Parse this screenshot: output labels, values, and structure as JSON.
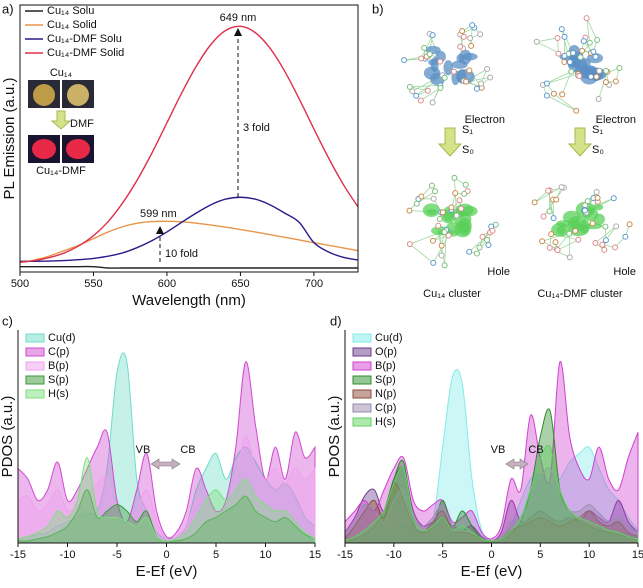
{
  "chart_data": [
    {
      "type": "line",
      "panel_label": "a)",
      "xlabel": "Wavelength (nm)",
      "ylabel": "PL Emission (a.u.)",
      "x": [
        500,
        510,
        520,
        530,
        540,
        550,
        560,
        570,
        580,
        590,
        600,
        610,
        620,
        630,
        640,
        650,
        660,
        670,
        680,
        690,
        700,
        710,
        720,
        730
      ],
      "xlim": [
        500,
        730
      ],
      "xticks": [
        500,
        550,
        600,
        650,
        700
      ],
      "ylim": [
        0,
        100
      ],
      "series": [
        {
          "name": "Cu₁₄ Solu",
          "color": "#222222",
          "values": [
            2,
            2,
            2,
            2,
            2,
            2,
            1.5,
            1.5,
            1.5,
            1.5,
            1.5,
            1.5,
            1.5,
            1.5,
            1.5,
            1.5,
            1.5,
            1.5,
            1.5,
            1.5,
            1.5,
            1.5,
            1.5,
            1.5
          ]
        },
        {
          "name": "Cu₁₄ Solid",
          "color": "#e8954a",
          "values": [
            3.5,
            4.5,
            6,
            8,
            10,
            12.5,
            15,
            17,
            18.3,
            18.9,
            19,
            18.8,
            18.3,
            17.6,
            16.8,
            15.9,
            15,
            14,
            13,
            12,
            11,
            10,
            9,
            8
          ]
        },
        {
          "name": "Cu₁₄-DMF Solu",
          "color": "#2a1a8a",
          "values": [
            4,
            4,
            4.1,
            4.3,
            4.6,
            5.1,
            5.9,
            7.2,
            9.2,
            11.8,
            15,
            18.6,
            22.1,
            25.2,
            27.3,
            28,
            27.3,
            25.2,
            22.1,
            18.6,
            11,
            7.5,
            5.5,
            4.5
          ]
        },
        {
          "name": "Cu₁₄-DMF Solid",
          "color": "#e0304a",
          "values": [
            3.7,
            4.3,
            5.4,
            7.1,
            9.8,
            13.6,
            18.9,
            26,
            34.7,
            44.8,
            55.9,
            67,
            77.1,
            85.3,
            90.5,
            92,
            89.7,
            83.9,
            75.3,
            64.8,
            53.6,
            42.7,
            32.8,
            24.4
          ]
        }
      ],
      "annotations": [
        "649 nm",
        "3 fold",
        "599 nm",
        "10 fold"
      ],
      "inset": {
        "top_label": "Cu₁₄",
        "arrow_label": "DMF",
        "bottom_label": "Cu₁₄-DMF"
      }
    },
    {
      "type": "area",
      "panel_label": "c)",
      "xlabel": "E-Ef (eV)",
      "ylabel": "PDOS (a.u.)",
      "x": [
        -15,
        -14,
        -13,
        -12,
        -11,
        -10,
        -9,
        -8,
        -7,
        -6,
        -5,
        -4,
        -3,
        -2,
        -1,
        0,
        1,
        2,
        3,
        4,
        5,
        6,
        7,
        8,
        9,
        10,
        11,
        12,
        13,
        14,
        15
      ],
      "xlim": [
        -15,
        15
      ],
      "xticks": [
        -15,
        -10,
        -5,
        0,
        5,
        10,
        15
      ],
      "ylim": [
        0,
        100
      ],
      "series": [
        {
          "name": "Cu(d)",
          "color": "#6fdcc8",
          "values": [
            2,
            3,
            4,
            5,
            8,
            10,
            12,
            14,
            15,
            35,
            80,
            85,
            30,
            15,
            5,
            2,
            3,
            8,
            25,
            35,
            42,
            30,
            40,
            45,
            38,
            30,
            25,
            28,
            22,
            12,
            8
          ]
        },
        {
          "name": "C(p)",
          "color": "#d04ad0",
          "values": [
            35,
            30,
            20,
            25,
            38,
            20,
            25,
            35,
            45,
            52,
            20,
            10,
            25,
            42,
            15,
            3,
            5,
            15,
            35,
            25,
            15,
            20,
            45,
            85,
            55,
            30,
            45,
            30,
            52,
            40,
            45
          ]
        },
        {
          "name": "B(p)",
          "color": "#f0a0f0",
          "values": [
            20,
            22,
            15,
            18,
            25,
            15,
            18,
            22,
            28,
            30,
            12,
            8,
            15,
            25,
            10,
            2,
            3,
            8,
            20,
            18,
            12,
            15,
            30,
            50,
            35,
            30,
            35,
            28,
            35,
            30,
            35
          ]
        },
        {
          "name": "S(p)",
          "color": "#3a9a3a",
          "values": [
            1,
            1,
            2,
            3,
            5,
            8,
            15,
            25,
            12,
            15,
            18,
            15,
            10,
            15,
            3,
            1,
            1,
            2,
            5,
            10,
            12,
            15,
            18,
            22,
            15,
            12,
            10,
            12,
            8,
            4,
            2
          ]
        },
        {
          "name": "H(s)",
          "color": "#7ee07e",
          "values": [
            2,
            3,
            5,
            8,
            15,
            12,
            20,
            40,
            15,
            12,
            12,
            10,
            8,
            12,
            3,
            1,
            2,
            5,
            12,
            20,
            25,
            20,
            25,
            30,
            22,
            18,
            15,
            15,
            10,
            5,
            2
          ]
        }
      ],
      "annotations": [
        "VB",
        "CB"
      ]
    },
    {
      "type": "area",
      "panel_label": "d)",
      "xlabel": "E-Ef (eV)",
      "ylabel": "PDOS (a.u.)",
      "x": [
        -15,
        -14,
        -13,
        -12,
        -11,
        -10,
        -9,
        -8,
        -7,
        -6,
        -5,
        -4,
        -3,
        -2,
        -1,
        0,
        1,
        2,
        3,
        4,
        5,
        6,
        7,
        8,
        9,
        10,
        11,
        12,
        13,
        14,
        15
      ],
      "xlim": [
        -15,
        15
      ],
      "xticks": [
        -15,
        -10,
        -5,
        0,
        5,
        10,
        15
      ],
      "ylim": [
        0,
        100
      ],
      "series": [
        {
          "name": "Cu(d)",
          "color": "#80ece8",
          "values": [
            1,
            1,
            2,
            3,
            4,
            6,
            8,
            6,
            5,
            10,
            45,
            78,
            75,
            30,
            6,
            1,
            2,
            8,
            20,
            30,
            32,
            28,
            30,
            38,
            42,
            45,
            35,
            25,
            20,
            12,
            6
          ]
        },
        {
          "name": "O(p)",
          "color": "#6a3a8a",
          "values": [
            5,
            12,
            22,
            25,
            15,
            30,
            35,
            15,
            8,
            10,
            12,
            8,
            6,
            8,
            3,
            1,
            5,
            20,
            10,
            12,
            15,
            12,
            10,
            12,
            10,
            15,
            12,
            10,
            20,
            10,
            5
          ]
        },
        {
          "name": "B(p)",
          "color": "#d040d0",
          "values": [
            10,
            15,
            20,
            15,
            25,
            35,
            40,
            20,
            15,
            18,
            20,
            10,
            12,
            15,
            5,
            2,
            8,
            30,
            25,
            60,
            40,
            30,
            85,
            50,
            35,
            30,
            45,
            30,
            25,
            40,
            52
          ]
        },
        {
          "name": "S(p)",
          "color": "#2e8b2e",
          "values": [
            1,
            2,
            4,
            8,
            15,
            30,
            38,
            10,
            5,
            8,
            20,
            8,
            15,
            8,
            2,
            1,
            2,
            5,
            10,
            25,
            50,
            62,
            25,
            15,
            10,
            8,
            6,
            5,
            4,
            3,
            2
          ]
        },
        {
          "name": "N(p)",
          "color": "#8b4a3a",
          "values": [
            2,
            8,
            15,
            20,
            12,
            28,
            20,
            8,
            5,
            10,
            15,
            6,
            5,
            4,
            2,
            1,
            2,
            6,
            8,
            10,
            12,
            10,
            8,
            10,
            12,
            15,
            10,
            8,
            10,
            5,
            3
          ]
        },
        {
          "name": "C(p)",
          "color": "#9a8ab0",
          "values": [
            3,
            10,
            18,
            15,
            10,
            20,
            25,
            12,
            8,
            12,
            18,
            8,
            6,
            5,
            2,
            1,
            3,
            10,
            12,
            20,
            30,
            35,
            20,
            15,
            15,
            18,
            14,
            10,
            12,
            8,
            5
          ]
        },
        {
          "name": "H(s)",
          "color": "#60d060",
          "values": [
            1,
            3,
            6,
            10,
            15,
            28,
            35,
            12,
            6,
            8,
            12,
            6,
            8,
            5,
            2,
            1,
            2,
            6,
            12,
            25,
            40,
            45,
            25,
            15,
            12,
            10,
            8,
            6,
            5,
            3,
            2
          ]
        }
      ],
      "annotations": [
        "VB",
        "CB"
      ]
    }
  ],
  "panel_b": {
    "label": "b)",
    "left": {
      "electron": "Electron",
      "s1": "S₁",
      "s0": "S₀",
      "hole": "Hole",
      "caption": "Cu₁₄ cluster"
    },
    "right": {
      "electron": "Electron",
      "s1": "S₁",
      "s0": "S₀",
      "hole": "Hole",
      "caption": "Cu₁₄-DMF cluster"
    }
  }
}
